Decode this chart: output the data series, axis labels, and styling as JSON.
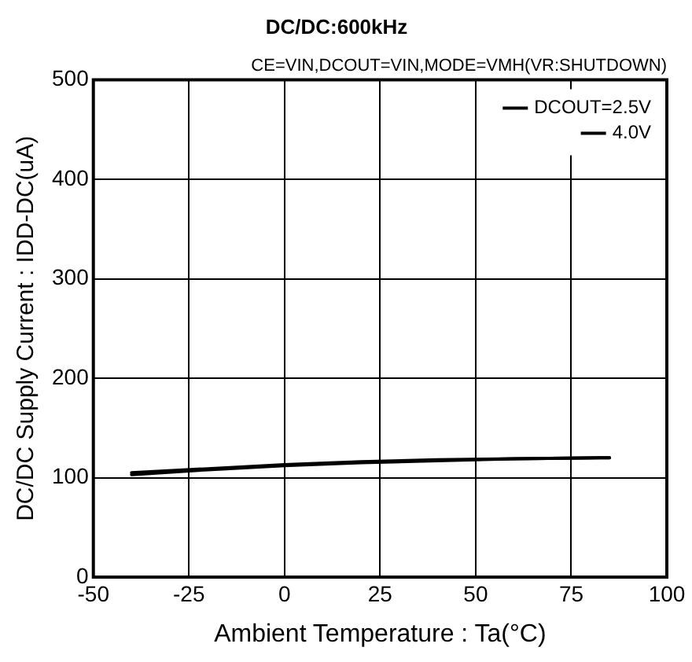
{
  "chart_data": {
    "type": "line",
    "title": "DC/DC:600kHz",
    "subtitle": "CE=VIN,DCOUT=VIN,MODE=VMH(VR:SHUTDOWN)",
    "xlabel": "Ambient Temperature : Ta(°C)",
    "ylabel": "DC/DC Supply Current : IDD-DC(uA)",
    "x": [
      -40,
      -20,
      0,
      20,
      40,
      60,
      85
    ],
    "series": [
      {
        "name": "DCOUT=2.5V",
        "color": "#000000",
        "values": [
          105,
          109,
          113,
          116,
          118,
          119,
          120
        ]
      },
      {
        "name": "4.0V",
        "color": "#000000",
        "values": [
          103,
          108,
          112,
          115,
          117,
          119,
          120
        ]
      }
    ],
    "xlim": [
      -50,
      100
    ],
    "xticks": [
      -50,
      -25,
      0,
      25,
      50,
      75,
      100
    ],
    "ylim": [
      0,
      500
    ],
    "yticks": [
      0,
      100,
      200,
      300,
      400,
      500
    ],
    "grid": true,
    "legend": "top right",
    "marker": "none",
    "line_style": "solid"
  }
}
